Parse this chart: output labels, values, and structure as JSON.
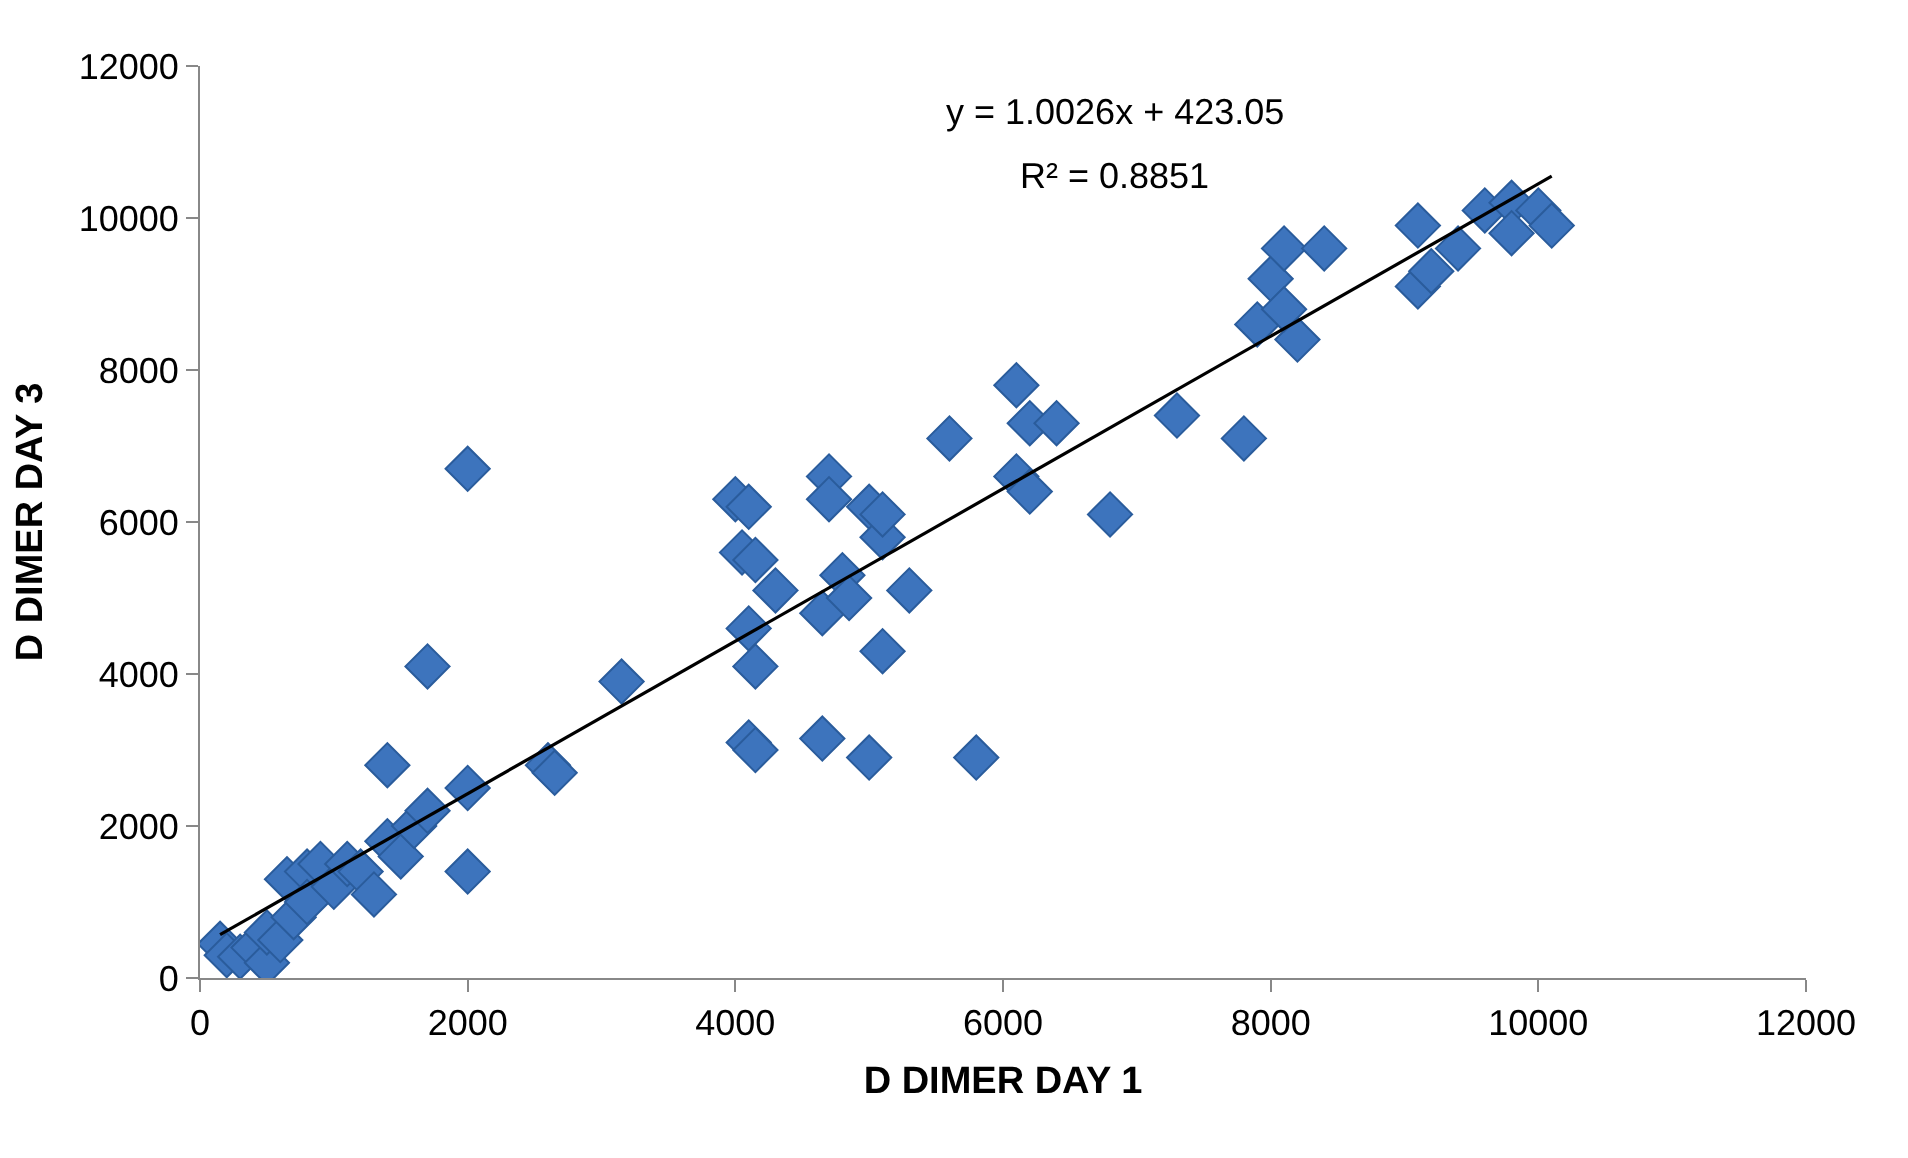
{
  "chart_data": {
    "type": "scatter",
    "xlabel": "D DIMER DAY 1",
    "ylabel": "D DIMER DAY 3",
    "annotations": [
      "y = 1.0026x + 423.05",
      "R² = 0.8851"
    ],
    "xlim": [
      0,
      12000
    ],
    "xticks": [
      0,
      2000,
      4000,
      6000,
      8000,
      10000,
      12000
    ],
    "ylim": [
      0,
      12000
    ],
    "yticks": [
      0,
      2000,
      4000,
      6000,
      8000,
      10000,
      12000
    ],
    "legend": false,
    "marker": "diamond",
    "series": [
      {
        "color": "#3d74bd",
        "x": [
          150,
          200,
          300,
          400,
          500,
          500,
          600,
          650,
          700,
          800,
          800,
          900,
          1000,
          1100,
          1200,
          1300,
          1400,
          1400,
          1500,
          1600,
          1700,
          1700,
          2000,
          2000,
          2000,
          2600,
          2650,
          3150,
          4000,
          4050,
          4100,
          4150,
          4100,
          4150,
          4100,
          4150,
          4300,
          4650,
          4650,
          4700,
          4700,
          4800,
          4850,
          5000,
          5000,
          5100,
          5100,
          5100,
          5300,
          5600,
          5800,
          6100,
          6100,
          6200,
          6200,
          6400,
          6800,
          7300,
          7800,
          7900,
          8000,
          8100,
          8200,
          8100,
          8400,
          9100,
          9100,
          9200,
          9400,
          9600,
          9800,
          9800,
          10000,
          10100
        ],
        "values": [
          450,
          300,
          280,
          400,
          200,
          600,
          500,
          1300,
          800,
          1400,
          1000,
          1500,
          1200,
          1500,
          1400,
          1100,
          1800,
          2800,
          1600,
          2000,
          2200,
          4100,
          6700,
          2500,
          1400,
          2800,
          2700,
          3900,
          6300,
          5600,
          6200,
          5500,
          4600,
          4100,
          3100,
          3000,
          5100,
          3150,
          4800,
          6600,
          6300,
          5300,
          5000,
          6200,
          2900,
          5800,
          6100,
          4300,
          5100,
          7100,
          2900,
          7800,
          6600,
          6400,
          7300,
          7300,
          6100,
          7400,
          7100,
          8600,
          9200,
          9600,
          8400,
          8800,
          9600,
          9900,
          9100,
          9300,
          9600,
          10100,
          10200,
          9800,
          10100,
          9900
        ]
      },
      {
        "type": "line",
        "color": "#000000",
        "marker": "none",
        "x": [
          150,
          10100
        ],
        "values": [
          570,
          10550
        ]
      }
    ]
  }
}
